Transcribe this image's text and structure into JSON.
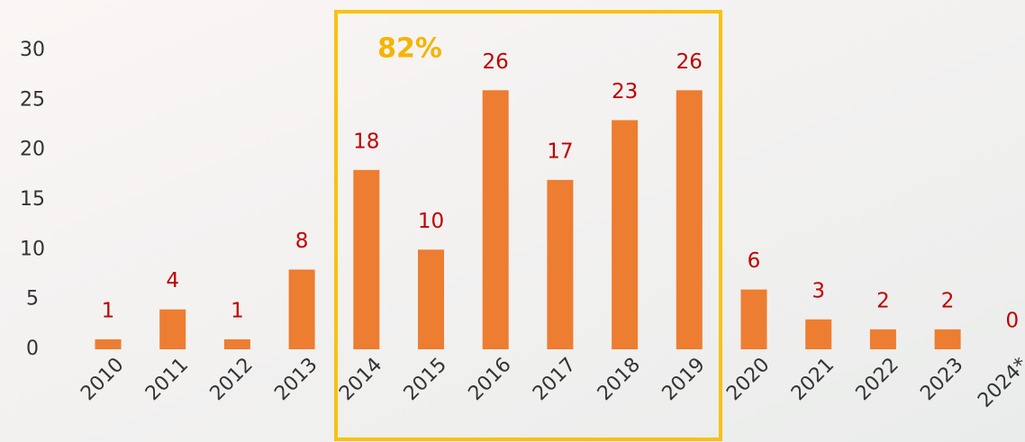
{
  "chart_data": {
    "type": "bar",
    "categories": [
      "2010",
      "2011",
      "2012",
      "2013",
      "2014",
      "2015",
      "2016",
      "2017",
      "2018",
      "2019",
      "2020",
      "2021",
      "2022",
      "2023",
      "2024*"
    ],
    "values": [
      1,
      4,
      1,
      8,
      18,
      10,
      26,
      17,
      23,
      26,
      6,
      3,
      2,
      2,
      0
    ],
    "color": "#ed7d31",
    "value_label_color": "#c00000",
    "ylim": [
      0,
      30
    ],
    "yticks": [
      0,
      5,
      10,
      15,
      20,
      25,
      30
    ],
    "grid": false,
    "annotation": "82%"
  }
}
